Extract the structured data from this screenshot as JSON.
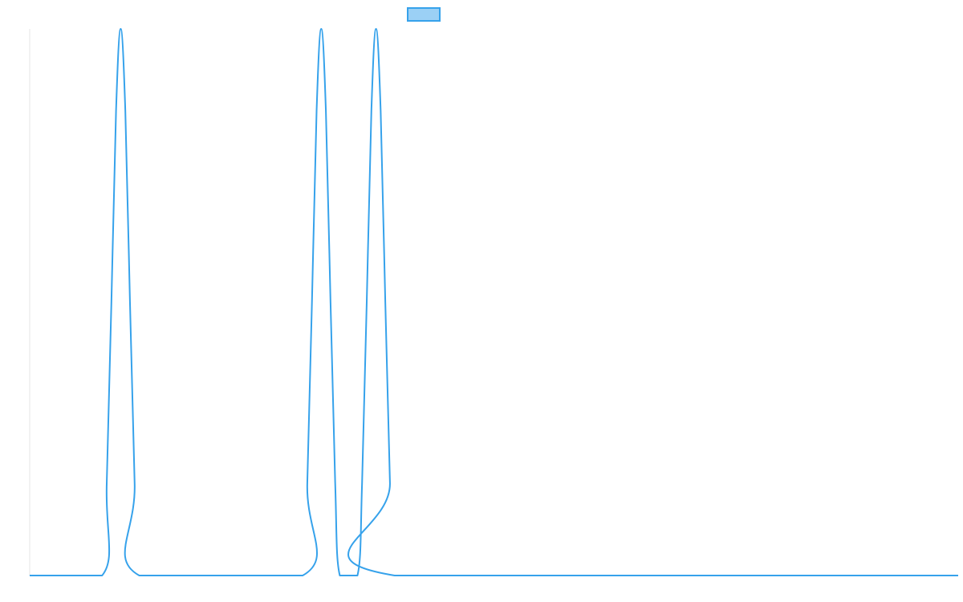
{
  "chart_data": {
    "type": "line",
    "title": "",
    "xlabel": "",
    "ylabel": "",
    "xlim": [
      0,
      100
    ],
    "ylim": [
      0,
      1
    ],
    "grid": false,
    "legend_placement": "top-center",
    "legend_swatch_fill": "#9bd0f5",
    "legend_swatch_stroke": "#36a2eb",
    "series": [
      {
        "color": "#36a2eb",
        "x": [
          0,
          7.8,
          8.3,
          8.8,
          9.3,
          9.8,
          10.3,
          10.8,
          11.3,
          11.8,
          29.4,
          29.9,
          30.4,
          30.9,
          31.4,
          31.9,
          32.4,
          32.9,
          33.4,
          35.3,
          35.8,
          36.3,
          36.8,
          37.3,
          37.8,
          38.3,
          38.8,
          39.3,
          100
        ],
        "values": [
          0,
          0,
          0.17,
          0.5,
          0.85,
          1.0,
          0.85,
          0.5,
          0.17,
          0,
          0,
          0.17,
          0.5,
          0.85,
          1.0,
          0.85,
          0.5,
          0.17,
          0,
          0,
          0.17,
          0.5,
          0.85,
          1.0,
          0.85,
          0.5,
          0.17,
          0,
          0
        ]
      }
    ]
  }
}
